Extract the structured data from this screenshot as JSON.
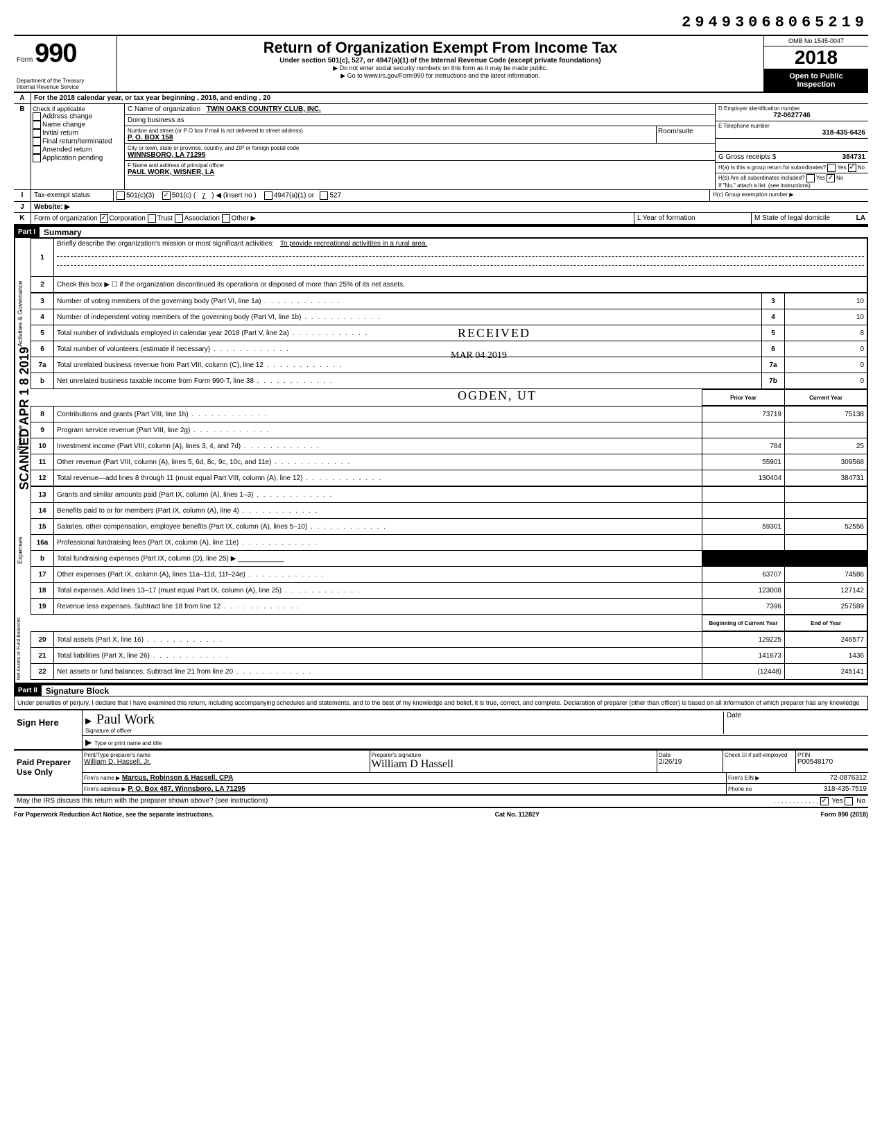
{
  "top_id": "29493068065219",
  "header": {
    "form_label": "Form",
    "form_number": "990",
    "dept1": "Department of the Treasury",
    "dept2": "Internal Revenue Service",
    "title": "Return of Organization Exempt From Income Tax",
    "subtitle": "Under section 501(c), 527, or 4947(a)(1) of the Internal Revenue Code (except private foundations)",
    "instr1": "▶ Do not enter social security numbers on this form as it may be made public.",
    "instr2": "▶ Go to www.irs.gov/Form990 for instructions and the latest information.",
    "omb": "OMB No 1545-0047",
    "year": "2018",
    "open1": "Open to Public",
    "open2": "Inspection"
  },
  "lineA": "For the 2018 calendar year, or tax year beginning                        , 2018, and ending                        , 20",
  "sectionB": {
    "label": "Check if applicable",
    "items": [
      "Address change",
      "Name change",
      "Initial return",
      "Final return/terminated",
      "Amended return",
      "Application pending"
    ]
  },
  "sectionC": {
    "c_label": "C Name of organization",
    "c_value": "TWIN OAKS COUNTRY CLUB, INC.",
    "dba_label": "Doing business as",
    "street_label": "Number and street (or P O box if mail is not delivered to street address)",
    "room_label": "Room/suite",
    "street_value": "P. O. BOX 158",
    "city_label": "City or town, state or province, country, and ZIP or foreign postal code",
    "city_value": "WINNSBORO, LA  71295",
    "f_label": "F Name and address of principal officer",
    "f_value": "PAUL WORK, WISNER, LA"
  },
  "sectionD": {
    "d_label": "D Employer identification number",
    "d_value": "72-0627746",
    "e_label": "E Telephone number",
    "e_value": "318-435-6426",
    "g_label": "G Gross receipts $",
    "g_value": "384731",
    "ha_label": "H(a) Is this a group return for subordinates?",
    "hb_label": "H(b) Are all subordinates included?",
    "hb_note": "If \"No,\" attach a list. (see instructions)",
    "hc_label": "H(c) Group exemption number ▶"
  },
  "lineI": {
    "label": "Tax-exempt status",
    "opt1": "501(c)(3)",
    "opt2": "501(c) (",
    "opt2_num": "7",
    "opt2_suffix": ") ◀ (insert no )",
    "opt3": "4947(a)(1) or",
    "opt4": "527"
  },
  "lineJ": "Website: ▶",
  "lineK": {
    "label": "Form of organization",
    "opts": [
      "Corporation",
      "Trust",
      "Association",
      "Other ▶"
    ],
    "l_label": "L Year of formation",
    "m_label": "M State of legal domicile",
    "m_value": "LA"
  },
  "partI": {
    "header": "Part I",
    "title": "Summary",
    "line1_label": "Briefly describe the organization's mission or most significant activities:",
    "line1_value": "To provide recreational activitites in a rural area.",
    "line2": "Check this box ▶ ☐ if the organization discontinued its operations or disposed of more than 25% of its net assets.",
    "rows_gov": [
      {
        "n": "3",
        "desc": "Number of voting members of the governing body (Part VI, line 1a)",
        "box": "3",
        "val": "10"
      },
      {
        "n": "4",
        "desc": "Number of independent voting members of the governing body (Part VI, line 1b)",
        "box": "4",
        "val": "10"
      },
      {
        "n": "5",
        "desc": "Total number of individuals employed in calendar year 2018 (Part V, line 2a)",
        "box": "5",
        "val": "8"
      },
      {
        "n": "6",
        "desc": "Total number of volunteers (estimate if necessary)",
        "box": "6",
        "val": "0"
      },
      {
        "n": "7a",
        "desc": "Total unrelated business revenue from Part VIII, column (C), line 12",
        "box": "7a",
        "val": "0"
      },
      {
        "n": "b",
        "desc": "Net unrelated business taxable income from Form 990-T, line 38",
        "box": "7b",
        "val": "0"
      }
    ],
    "col_headers": {
      "prior": "Prior Year",
      "current": "Current Year"
    },
    "rows_rev": [
      {
        "n": "8",
        "desc": "Contributions and grants (Part VIII, line 1h)",
        "prior": "73719",
        "cur": "75138"
      },
      {
        "n": "9",
        "desc": "Program service revenue (Part VIII, line 2g)",
        "prior": "",
        "cur": ""
      },
      {
        "n": "10",
        "desc": "Investment income (Part VIII, column (A), lines 3, 4, and 7d)",
        "prior": "784",
        "cur": "25"
      },
      {
        "n": "11",
        "desc": "Other revenue (Part VIII, column (A), lines 5, 6d, 8c, 9c, 10c, and 11e)",
        "prior": "55901",
        "cur": "309568"
      },
      {
        "n": "12",
        "desc": "Total revenue—add lines 8 through 11 (must equal Part VIII, column (A), line 12)",
        "prior": "130404",
        "cur": "384731"
      }
    ],
    "rows_exp": [
      {
        "n": "13",
        "desc": "Grants and similar amounts paid (Part IX, column (A), lines 1–3)",
        "prior": "",
        "cur": ""
      },
      {
        "n": "14",
        "desc": "Benefits paid to or for members (Part IX, column (A), line 4)",
        "prior": "",
        "cur": ""
      },
      {
        "n": "15",
        "desc": "Salaries, other compensation, employee benefits (Part IX, column (A), lines 5–10)",
        "prior": "59301",
        "cur": "52556"
      },
      {
        "n": "16a",
        "desc": "Professional fundraising fees (Part IX, column (A), line 11e)",
        "prior": "",
        "cur": ""
      },
      {
        "n": "b",
        "desc": "Total fundraising expenses (Part IX, column (D), line 25) ▶ ____________",
        "shaded": true
      },
      {
        "n": "17",
        "desc": "Other expenses (Part IX, column (A), lines 11a–11d, 11f–24e)",
        "prior": "63707",
        "cur": "74586"
      },
      {
        "n": "18",
        "desc": "Total expenses. Add lines 13–17 (must equal Part IX, column (A), line 25)",
        "prior": "123008",
        "cur": "127142"
      },
      {
        "n": "19",
        "desc": "Revenue less expenses. Subtract line 18 from line 12",
        "prior": "7396",
        "cur": "257589"
      }
    ],
    "col_headers2": {
      "begin": "Beginning of Current Year",
      "end": "End of Year"
    },
    "rows_net": [
      {
        "n": "20",
        "desc": "Total assets (Part X, line 16)",
        "prior": "129225",
        "cur": "246577"
      },
      {
        "n": "21",
        "desc": "Total liabilities (Part X, line 26)",
        "prior": "141673",
        "cur": "1436"
      },
      {
        "n": "22",
        "desc": "Net assets or fund balances. Subtract line 21 from line 20",
        "prior": "(12448)",
        "cur": "245141"
      }
    ],
    "vert_labels": {
      "gov": "Activities & Governance",
      "rev": "Revenue",
      "exp": "Expenses",
      "net": "Net Assets or Fund Balances"
    }
  },
  "stamp": {
    "received": "RECEIVED",
    "date": "MAR 04 2019",
    "ogden": "OGDEN, UT"
  },
  "partII": {
    "header": "Part II",
    "title": "Signature Block",
    "declaration": "Under penalties of perjury, I declare that I have examined this return, including accompanying schedules and statements, and to the best of my knowledge and belief, it is true, correct, and complete. Declaration of preparer (other than officer) is based on all information of which preparer has any knowledge",
    "sign_here": "Sign Here",
    "sig_officer": "Paul Work",
    "sig_officer_label": "Signature of officer",
    "date_label": "Date",
    "type_label": "Type or print name and title",
    "paid": "Paid Preparer Use Only",
    "prep_name_label": "Print/Type preparer's name",
    "prep_name": "William D. Hassell, Jr.",
    "prep_sig_label": "Preparer's signature",
    "prep_sig": "William D Hassell",
    "prep_date": "2/26/19",
    "check_self": "Check ☑ if self-employed",
    "ptin_label": "PTIN",
    "ptin": "P00548170",
    "firm_name_label": "Firm's name    ▶",
    "firm_name": "Marcus, Robinson & Hassell, CPA",
    "firm_ein_label": "Firm's EIN ▶",
    "firm_ein": "72-0876312",
    "firm_addr_label": "Firm's address ▶",
    "firm_addr": "P. O. Box 487, Winnsboro, LA  71295",
    "phone_label": "Phone no",
    "phone": "318-435-7519",
    "may_discuss": "May the IRS discuss this return with the preparer shown above? (see instructions)"
  },
  "footer": {
    "left": "For Paperwork Reduction Act Notice, see the separate instructions.",
    "mid": "Cat No. 11282Y",
    "right": "Form 990 (2018)"
  },
  "scanned_text": "SCANNED APR 1 8 2019"
}
